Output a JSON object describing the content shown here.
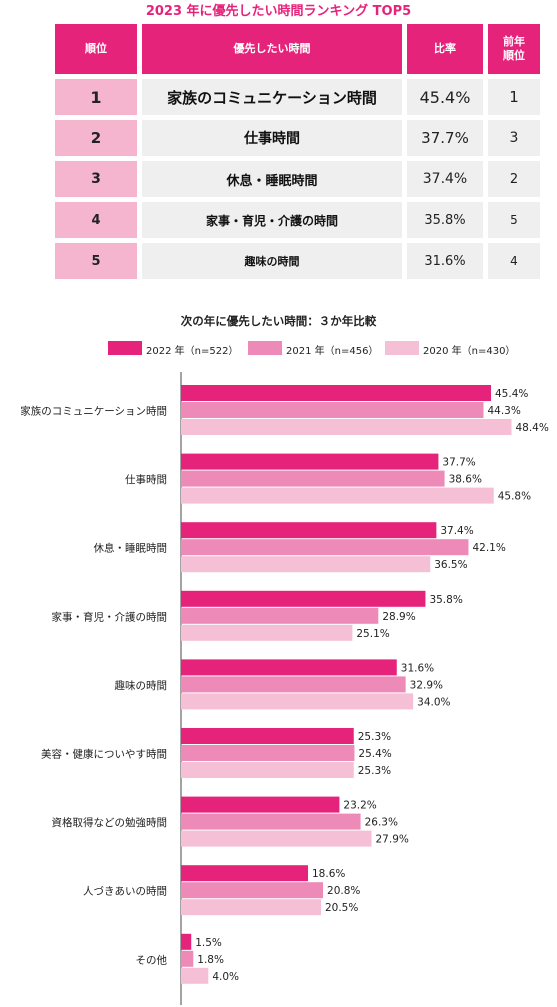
{
  "colors": {
    "accent": "#e6237a",
    "series": [
      "#e6237a",
      "#ee8ab8",
      "#f5bfd5"
    ],
    "rank_cell": "#f5b5cf",
    "cell_bg": "#efefef"
  },
  "ranking": {
    "title": "2023 年に優先したい時間ランキング TOP5",
    "headers": [
      "順位",
      "優先したい時間",
      "比率",
      "前年\n順位"
    ],
    "rows": [
      {
        "rank": "1",
        "name": "家族のコミュニケーション時間",
        "ratio": "45.4%",
        "prev": "1"
      },
      {
        "rank": "2",
        "name": "仕事時間",
        "ratio": "37.7%",
        "prev": "3"
      },
      {
        "rank": "3",
        "name": "休息・睡眠時間",
        "ratio": "37.4%",
        "prev": "2"
      },
      {
        "rank": "4",
        "name": "家事・育児・介護の時間",
        "ratio": "35.8%",
        "prev": "5"
      },
      {
        "rank": "5",
        "name": "趣味の時間",
        "ratio": "31.6%",
        "prev": "4"
      }
    ]
  },
  "chart_data": {
    "type": "bar",
    "orientation": "horizontal",
    "title": "次の年に優先したい時間：３か年比較",
    "categories": [
      "家族のコミュニケーション時間",
      "仕事時間",
      "休息・睡眠時間",
      "家事・育児・介護の時間",
      "趣味の時間",
      "美容・健康についやす時間",
      "資格取得などの勉強時間",
      "人づきあいの時間",
      "その他"
    ],
    "series": [
      {
        "name": "2022 年（n=522）",
        "values": [
          45.4,
          37.7,
          37.4,
          35.8,
          31.6,
          25.3,
          23.2,
          18.6,
          1.5
        ]
      },
      {
        "name": "2021 年（n=456）",
        "values": [
          44.3,
          38.6,
          42.1,
          28.9,
          32.9,
          25.4,
          26.3,
          20.8,
          1.8
        ]
      },
      {
        "name": "2020 年（n=430）",
        "values": [
          48.4,
          45.8,
          36.5,
          25.1,
          34.0,
          25.3,
          27.9,
          20.5,
          4.0
        ]
      }
    ],
    "value_suffix": "%",
    "xlim": [
      0,
      60
    ],
    "grid": false,
    "legend": "top"
  }
}
